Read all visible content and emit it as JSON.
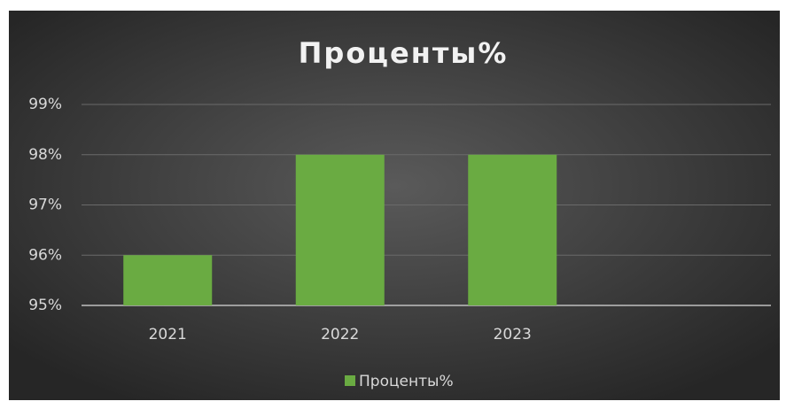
{
  "chart_data": {
    "type": "bar",
    "title": "Проценты%",
    "categories": [
      "2021",
      "2022",
      "2023",
      null
    ],
    "series": [
      {
        "name": "Проценты%",
        "color": "#6aab42",
        "values": [
          96,
          98,
          98,
          null
        ]
      }
    ],
    "ylim": [
      95,
      99
    ],
    "yticks": [
      {
        "value": 95,
        "label": "95%"
      },
      {
        "value": 96,
        "label": "96%"
      },
      {
        "value": 97,
        "label": "97%"
      },
      {
        "value": 98,
        "label": "98%"
      },
      {
        "value": 99,
        "label": "99%"
      }
    ],
    "grid": true,
    "legend": "bottom"
  }
}
